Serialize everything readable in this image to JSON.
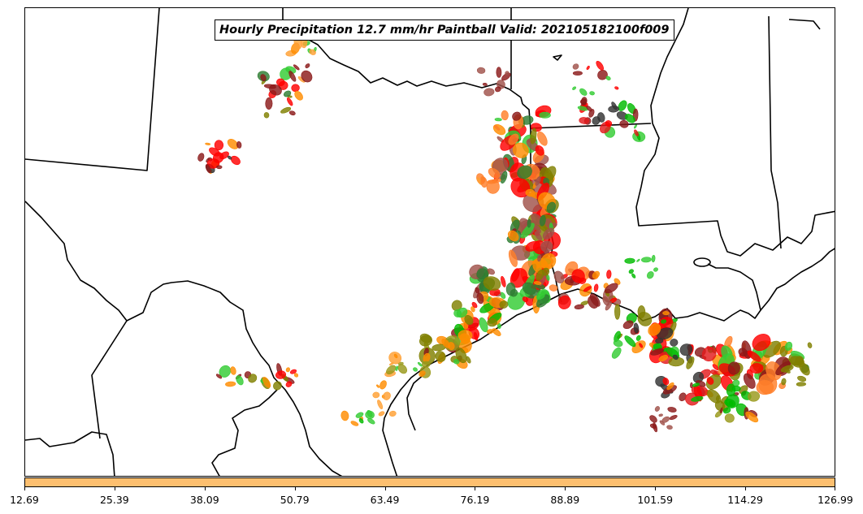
{
  "title": "Hourly Precipitation 12.7 mm/hr Paintball Valid: 202105182100f009",
  "colorbar": {
    "color": "#fdbf6f",
    "tick_labels": [
      "12.69",
      "25.39",
      "38.09",
      "50.79",
      "63.49",
      "76.19",
      "88.89",
      "101.59",
      "114.29",
      "126.99"
    ]
  },
  "member_colors": [
    "#33cc33",
    "#00bb00",
    "#2e7d32",
    "#808000",
    "#99991a",
    "#ff8c00",
    "#ff7f2a",
    "#ffa033",
    "#ff0000",
    "#e31a1c",
    "#8b1a1a",
    "#a0524a",
    "#333333"
  ]
}
